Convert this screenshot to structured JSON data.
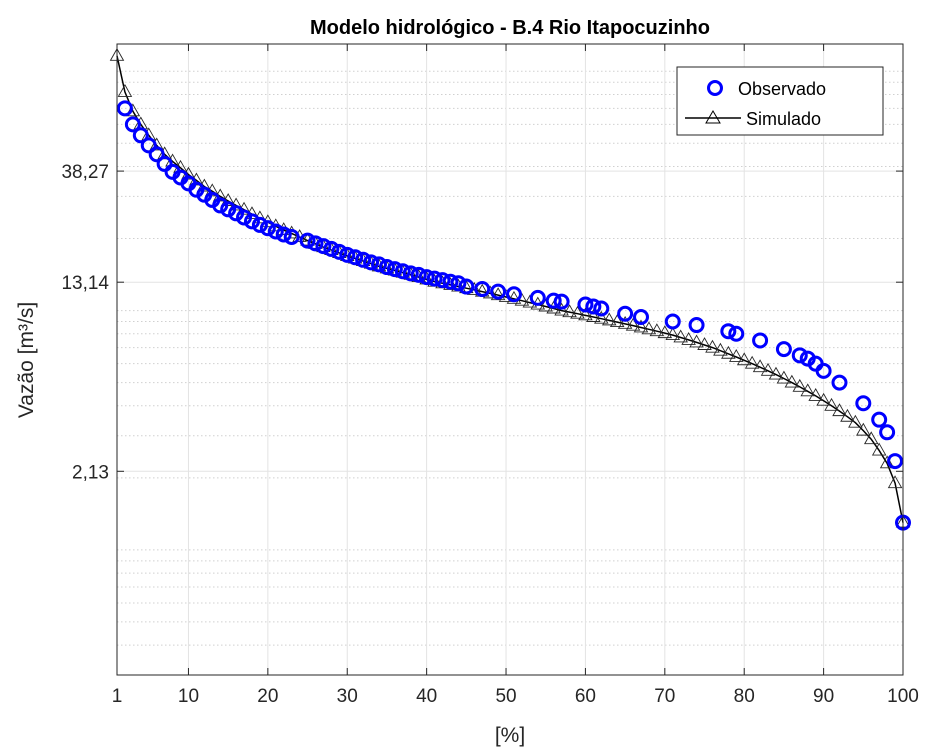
{
  "chart_data": {
    "type": "line",
    "title": "Modelo hidrológico - B.4 Rio Itapocuzinho",
    "xlabel": "[%]",
    "ylabel": "Vazão [m³/s]",
    "xlim": [
      1,
      100
    ],
    "ylim": [
      0.3,
      130
    ],
    "yscale": "log",
    "grid": true,
    "legend_position": "top-right",
    "x_ticks": [
      1,
      10,
      20,
      30,
      40,
      50,
      60,
      70,
      80,
      90,
      100
    ],
    "x_tick_labels": [
      "1",
      "10",
      "20",
      "30",
      "40",
      "50",
      "60",
      "70",
      "80",
      "90",
      "100"
    ],
    "y_ticks": [
      2.13,
      13.14,
      38.27
    ],
    "y_tick_labels": [
      "2,13",
      "13,14",
      "38,27"
    ],
    "series": [
      {
        "name": "Observado",
        "marker": "circle",
        "color": "#0000ff",
        "x": [
          2,
          3,
          4,
          5,
          6,
          7,
          8,
          9,
          10,
          11,
          12,
          13,
          14,
          15,
          16,
          17,
          18,
          19,
          20,
          21,
          22,
          23,
          25,
          26,
          27,
          28,
          29,
          30,
          31,
          32,
          33,
          34,
          35,
          36,
          37,
          38,
          39,
          40,
          41,
          42,
          43,
          44,
          45,
          47,
          49,
          51,
          54,
          56,
          57,
          60,
          61,
          62,
          65,
          67,
          71,
          74,
          78,
          79,
          82,
          85,
          87,
          88,
          89,
          90,
          92,
          95,
          97,
          98,
          99,
          100
        ],
        "y": [
          70,
          60,
          54,
          49,
          45,
          41,
          38,
          36,
          34,
          32,
          30.5,
          29,
          27.5,
          26.5,
          25.5,
          24.5,
          23.6,
          22.8,
          22.1,
          21.4,
          20.8,
          20.3,
          19.6,
          19.1,
          18.6,
          18.1,
          17.6,
          17.1,
          16.7,
          16.3,
          15.9,
          15.6,
          15.2,
          14.9,
          14.6,
          14.3,
          14.1,
          13.8,
          13.6,
          13.4,
          13.2,
          13.0,
          12.6,
          12.3,
          12.0,
          11.7,
          11.3,
          11.0,
          10.9,
          10.6,
          10.4,
          10.2,
          9.7,
          9.4,
          9.0,
          8.7,
          8.2,
          8.0,
          7.5,
          6.9,
          6.5,
          6.3,
          6.0,
          5.6,
          5.0,
          4.1,
          3.5,
          3.1,
          2.35,
          1.3
        ]
      },
      {
        "name": "Simulado",
        "marker": "triangle",
        "color": "#000000",
        "x": [
          1,
          2,
          3,
          4,
          5,
          6,
          7,
          8,
          9,
          10,
          11,
          12,
          13,
          14,
          15,
          16,
          17,
          18,
          19,
          20,
          21,
          22,
          23,
          24,
          25,
          26,
          27,
          28,
          29,
          30,
          31,
          32,
          33,
          34,
          35,
          36,
          37,
          38,
          39,
          40,
          41,
          42,
          43,
          44,
          45,
          46,
          47,
          48,
          49,
          50,
          51,
          52,
          53,
          54,
          55,
          56,
          57,
          58,
          59,
          60,
          61,
          62,
          63,
          64,
          65,
          66,
          67,
          68,
          69,
          70,
          71,
          72,
          73,
          74,
          75,
          76,
          77,
          78,
          79,
          80,
          81,
          82,
          83,
          84,
          85,
          86,
          87,
          88,
          89,
          90,
          91,
          92,
          93,
          94,
          95,
          96,
          97,
          98,
          99,
          100
        ],
        "y": [
          116,
          82,
          68,
          60,
          54,
          49,
          45,
          42,
          39.5,
          37,
          35,
          33,
          31.5,
          30,
          28.7,
          27.5,
          26.4,
          25.3,
          24.3,
          23.4,
          22.5,
          21.7,
          21,
          20.3,
          19.6,
          19,
          18.4,
          17.9,
          17.4,
          16.9,
          16.5,
          16.1,
          15.7,
          15.3,
          15,
          14.7,
          14.4,
          14.1,
          13.8,
          13.5,
          13.2,
          13,
          12.8,
          12.6,
          12.4,
          12.2,
          12,
          11.8,
          11.6,
          11.4,
          11.2,
          11.0,
          10.8,
          10.6,
          10.4,
          10.2,
          10.0,
          9.85,
          9.7,
          9.55,
          9.4,
          9.25,
          9.1,
          8.95,
          8.8,
          8.65,
          8.5,
          8.35,
          8.2,
          8.05,
          7.9,
          7.72,
          7.54,
          7.36,
          7.18,
          7.0,
          6.8,
          6.6,
          6.4,
          6.2,
          6.0,
          5.8,
          5.6,
          5.4,
          5.2,
          5.0,
          4.8,
          4.6,
          4.4,
          4.2,
          4.0,
          3.8,
          3.6,
          3.4,
          3.15,
          2.9,
          2.6,
          2.3,
          1.9,
          1.3
        ]
      }
    ]
  }
}
